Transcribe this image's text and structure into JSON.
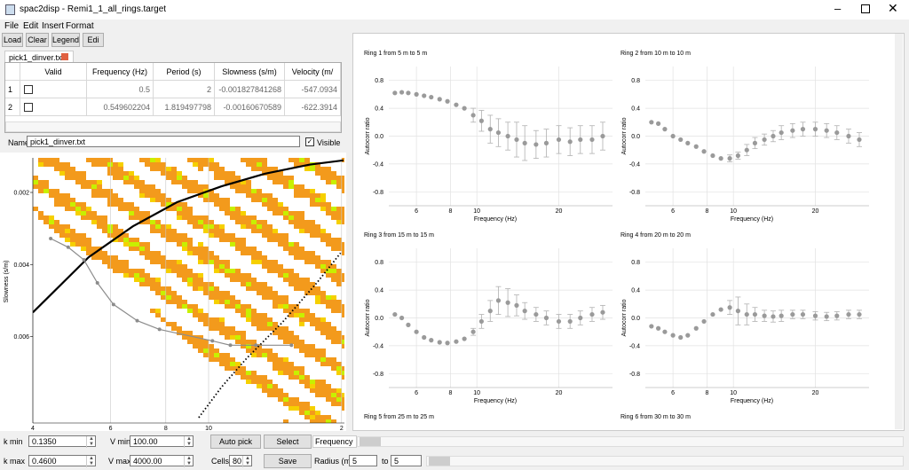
{
  "window": {
    "title": "spac2disp - Remi1_1_all_rings.target"
  },
  "menu": [
    "File",
    "Edit",
    "Insert",
    "Format"
  ],
  "toolbar": [
    "Load",
    "Clear",
    "Legend",
    "Edi"
  ],
  "tab": "pick1_dinver.txt",
  "table": {
    "columns": [
      "Valid",
      "Frequency (Hz)",
      "Period (s)",
      "Slowness (s/m)",
      "Velocity (m/"
    ],
    "rows": [
      [
        "1",
        "0.5",
        "2",
        "-0.001827841268",
        "-547.0934"
      ],
      [
        "2",
        "0.549602204",
        "1.819497798",
        "-0.00160670589",
        "-622.3914"
      ]
    ]
  },
  "name_field": {
    "label": "Name",
    "value": "pick1_dinver.txt",
    "checkbox": "Visible"
  },
  "dispersion_plot": {
    "type": "line",
    "xlabel": "Frequency (Hz)",
    "ylabel": "Slowness (s/m)",
    "xscale": "log",
    "xlim": [
      4,
      20.3
    ],
    "ylim": [
      0.00104,
      0.0084
    ],
    "xticks": [
      4,
      6,
      8,
      10,
      {
        "value": 20,
        "label": "2"
      }
    ],
    "yticks": [
      0.002,
      0.004,
      0.006
    ],
    "curves": [
      {
        "color": "#000000",
        "style": "solid",
        "x": [
          4,
          5.35,
          6.74,
          8.48,
          10.7,
          13.4,
          16.9,
          20.2
        ],
        "y": [
          0.00533,
          0.0038,
          0.00294,
          0.00227,
          0.00183,
          0.00148,
          0.00123,
          0.00111
        ]
      },
      {
        "color": "#000000",
        "style": "dotted",
        "x": [
          9.5,
          10.7,
          12.2,
          14.7,
          17.6,
          19.9
        ],
        "y": [
          0.00825,
          0.0074,
          0.0066,
          0.0056,
          0.0045,
          0.00368
        ]
      }
    ],
    "picks": {
      "color": "#8c8c8c",
      "x": [
        4.39,
        4.81,
        5.22,
        5.6,
        6.09,
        6.89,
        7.74,
        10.2,
        11.2,
        12.8,
        15.4
      ],
      "y": [
        0.00328,
        0.00352,
        0.00387,
        0.00451,
        0.00511,
        0.00556,
        0.0058,
        0.00612,
        0.00624,
        0.00624,
        0.00624
      ]
    }
  },
  "ring_plots": {
    "type": "scatter",
    "xlabel": "Frequency (Hz)",
    "ylabel": "Autocorr ratio",
    "xscale": "log",
    "xlim": [
      4.75,
      31.5
    ],
    "ylim": [
      -1,
      1
    ],
    "xticks": [
      6,
      8,
      10,
      20
    ],
    "yticks": [
      0.8,
      0.4,
      {
        "value": 0,
        "label": "0.0"
      },
      -0.4,
      -0.8
    ],
    "grid": true,
    "color": "#9a9a9a",
    "x": [
      5,
      5.3,
      5.6,
      6,
      6.4,
      6.8,
      7.3,
      7.8,
      8.4,
      9,
      9.7,
      10.4,
      11.2,
      12,
      13,
      14,
      15,
      16.5,
      18,
      20,
      22,
      24,
      26.5,
      29
    ],
    "rings": [
      {
        "title": "Ring 1 from 5 m to 5 m",
        "values": [
          0.62,
          0.63,
          0.62,
          0.6,
          0.58,
          0.56,
          0.53,
          0.5,
          0.45,
          0.4,
          0.3,
          0.22,
          0.1,
          0.05,
          0.0,
          -0.05,
          -0.1,
          -0.12,
          -0.1,
          -0.05,
          -0.08,
          -0.05,
          -0.05,
          0.0
        ],
        "errors": [
          0,
          0,
          0,
          0,
          0,
          0,
          0,
          0,
          0,
          0,
          0.1,
          0.15,
          0.2,
          0.2,
          0.2,
          0.25,
          0.25,
          0.2,
          0.2,
          0.2,
          0.2,
          0.2,
          0.2,
          0.2
        ]
      },
      {
        "title": "Ring 2 from 10 m to 10 m",
        "values": [
          0.2,
          0.18,
          0.1,
          0.0,
          -0.05,
          -0.1,
          -0.15,
          -0.22,
          -0.28,
          -0.32,
          -0.32,
          -0.28,
          -0.2,
          -0.1,
          -0.05,
          0.0,
          0.05,
          0.08,
          0.1,
          0.1,
          0.08,
          0.05,
          0.0,
          -0.05
        ],
        "errors": [
          0,
          0,
          0,
          0,
          0,
          0,
          0,
          0,
          0,
          0,
          0.05,
          0.05,
          0.08,
          0.08,
          0.08,
          0.08,
          0.1,
          0.1,
          0.1,
          0.1,
          0.1,
          0.1,
          0.1,
          0.1
        ]
      },
      {
        "title": "Ring 3 from 15 m to 15 m",
        "values": [
          0.05,
          0.0,
          -0.1,
          -0.2,
          -0.28,
          -0.32,
          -0.35,
          -0.36,
          -0.34,
          -0.3,
          -0.2,
          -0.05,
          0.1,
          0.25,
          0.22,
          0.18,
          0.1,
          0.05,
          0.0,
          -0.05,
          -0.05,
          0.0,
          0.05,
          0.08
        ],
        "errors": [
          0,
          0,
          0,
          0,
          0,
          0,
          0,
          0,
          0,
          0,
          0.05,
          0.1,
          0.15,
          0.2,
          0.2,
          0.15,
          0.12,
          0.1,
          0.1,
          0.1,
          0.1,
          0.1,
          0.1,
          0.1
        ]
      },
      {
        "title": "Ring 4 from 20 m to 20 m",
        "values": [
          -0.12,
          -0.15,
          -0.2,
          -0.25,
          -0.28,
          -0.25,
          -0.15,
          -0.05,
          0.05,
          0.12,
          0.15,
          0.1,
          0.05,
          0.05,
          0.03,
          0.02,
          0.03,
          0.05,
          0.05,
          0.03,
          0.02,
          0.03,
          0.05,
          0.05
        ],
        "errors": [
          0,
          0,
          0,
          0,
          0,
          0,
          0,
          0,
          0,
          0,
          0.1,
          0.2,
          0.15,
          0.1,
          0.08,
          0.08,
          0.08,
          0.06,
          0.06,
          0.06,
          0.06,
          0.06,
          0.06,
          0.06
        ]
      },
      {
        "title": "Ring 5 from 25 m to 25 m"
      },
      {
        "title": "Ring 6 from 30 m to 30 m"
      }
    ]
  },
  "controls": {
    "kmin": {
      "label": "k min",
      "value": "0.1350"
    },
    "kmax": {
      "label": "k max",
      "value": "0.4600"
    },
    "vmin": {
      "label": "V min",
      "value": "100.00"
    },
    "vmax": {
      "label": "V max",
      "value": "4000.00"
    },
    "cells": {
      "label": "Cells",
      "value": "80"
    },
    "auto_pick": "Auto pick",
    "select": "Select",
    "save": "Save",
    "frequency": "Frequency",
    "radius": {
      "label": "Radius (m)",
      "from": "5",
      "to_label": "to",
      "to": "5"
    }
  }
}
